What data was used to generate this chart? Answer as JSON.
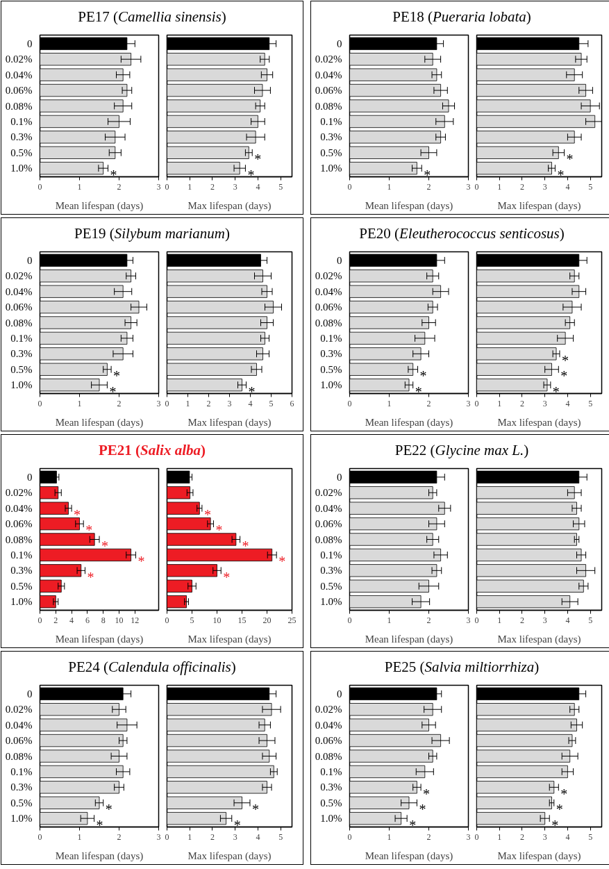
{
  "chart_data": [
    {
      "type": "bar",
      "orientation": "horizontal",
      "title": "PE17 (Camellia sinensis)",
      "xlabel": "Mean lifespan (days)",
      "categories": [
        "0",
        "0.02%",
        "0.04%",
        "0.06%",
        "0.08%",
        "0.1%",
        "0.3%",
        "0.5%",
        "1.0%"
      ],
      "values": [
        2.2,
        2.3,
        2.1,
        2.2,
        2.1,
        2.0,
        1.9,
        1.9,
        1.6
      ],
      "errors": [
        0.2,
        0.25,
        0.17,
        0.12,
        0.22,
        0.28,
        0.25,
        0.15,
        0.12
      ],
      "colors": [
        "#000000",
        "#d9d9d9",
        "#d9d9d9",
        "#d9d9d9",
        "#d9d9d9",
        "#d9d9d9",
        "#d9d9d9",
        "#d9d9d9",
        "#d9d9d9"
      ],
      "xlim": [
        0,
        3
      ],
      "xticks": [
        0,
        1,
        2,
        3
      ],
      "annotations": [
        {
          "text": "*",
          "x": 1.72,
          "y": "1.0%"
        }
      ]
    },
    {
      "type": "bar",
      "orientation": "horizontal",
      "xlabel": "Max lifespan (days)",
      "categories": [
        "0",
        "0.02%",
        "0.04%",
        "0.06%",
        "0.08%",
        "0.1%",
        "0.3%",
        "0.5%",
        "1.0%"
      ],
      "values": [
        4.5,
        4.3,
        4.4,
        4.2,
        4.1,
        4.0,
        3.9,
        3.6,
        3.2
      ],
      "errors": [
        0.3,
        0.2,
        0.25,
        0.35,
        0.2,
        0.3,
        0.4,
        0.15,
        0.25
      ],
      "colors": [
        "#000000",
        "#d9d9d9",
        "#d9d9d9",
        "#d9d9d9",
        "#d9d9d9",
        "#d9d9d9",
        "#d9d9d9",
        "#d9d9d9",
        "#d9d9d9"
      ],
      "xlim": [
        0,
        5.5
      ],
      "xticks": [
        0,
        1,
        2,
        3,
        4,
        5
      ],
      "tick_labels": "x",
      "annotations": [
        {
          "text": "*",
          "x": 3.75,
          "y": "0.5%"
        },
        {
          "text": "*",
          "x": 3.45,
          "y": "1.0%"
        }
      ]
    },
    {
      "type": "bar",
      "orientation": "horizontal",
      "title": "PE18 (Pueraria lobata)",
      "xlabel": "Mean lifespan (days)",
      "categories": [
        "0",
        "0.02%",
        "0.04%",
        "0.06%",
        "0.08%",
        "0.1%",
        "0.3%",
        "0.5%",
        "1.0%"
      ],
      "values": [
        2.2,
        2.1,
        2.2,
        2.3,
        2.5,
        2.4,
        2.3,
        2.0,
        1.7
      ],
      "errors": [
        0.17,
        0.2,
        0.12,
        0.17,
        0.15,
        0.22,
        0.12,
        0.2,
        0.12
      ],
      "colors": [
        "#000000",
        "#d9d9d9",
        "#d9d9d9",
        "#d9d9d9",
        "#d9d9d9",
        "#d9d9d9",
        "#d9d9d9",
        "#d9d9d9",
        "#d9d9d9"
      ],
      "xlim": [
        0,
        3
      ],
      "xticks": [
        0,
        1,
        2,
        3
      ],
      "annotations": [
        {
          "text": "*",
          "x": 1.82,
          "y": "1.0%"
        }
      ]
    },
    {
      "type": "bar",
      "orientation": "horizontal",
      "xlabel": "Max lifespan (days)",
      "categories": [
        "0",
        "0.02%",
        "0.04%",
        "0.06%",
        "0.08%",
        "0.1%",
        "0.3%",
        "0.5%",
        "1.0%"
      ],
      "values": [
        4.5,
        4.6,
        4.3,
        4.8,
        5.0,
        5.2,
        4.3,
        3.6,
        3.3
      ],
      "errors": [
        0.4,
        0.25,
        0.35,
        0.3,
        0.4,
        0.4,
        0.3,
        0.25,
        0.15
      ],
      "colors": [
        "#000000",
        "#d9d9d9",
        "#d9d9d9",
        "#d9d9d9",
        "#d9d9d9",
        "#d9d9d9",
        "#d9d9d9",
        "#d9d9d9",
        "#d9d9d9"
      ],
      "xlim": [
        0,
        5.5
      ],
      "xticks": [
        0,
        1,
        2,
        3,
        4,
        5
      ],
      "tick_labels": "x",
      "annotations": [
        {
          "text": "*",
          "x": 3.85,
          "y": "0.5%"
        },
        {
          "text": "*",
          "x": 3.45,
          "y": "1.0%"
        }
      ]
    },
    {
      "type": "bar",
      "orientation": "horizontal",
      "title": "PE19 (Silybum marianum)",
      "xlabel": "Mean lifespan (days)",
      "categories": [
        "0",
        "0.02%",
        "0.04%",
        "0.06%",
        "0.08%",
        "0.1%",
        "0.3%",
        "0.5%",
        "1.0%"
      ],
      "values": [
        2.2,
        2.3,
        2.1,
        2.5,
        2.3,
        2.2,
        2.1,
        1.7,
        1.5
      ],
      "errors": [
        0.15,
        0.12,
        0.22,
        0.2,
        0.15,
        0.15,
        0.25,
        0.1,
        0.2
      ],
      "colors": [
        "#000000",
        "#d9d9d9",
        "#d9d9d9",
        "#d9d9d9",
        "#d9d9d9",
        "#d9d9d9",
        "#d9d9d9",
        "#d9d9d9",
        "#d9d9d9"
      ],
      "xlim": [
        0,
        3
      ],
      "xticks": [
        0,
        1,
        2,
        3
      ],
      "annotations": [
        {
          "text": "*",
          "x": 1.8,
          "y": "0.5%"
        },
        {
          "text": "*",
          "x": 1.7,
          "y": "1.0%"
        }
      ]
    },
    {
      "type": "bar",
      "orientation": "horizontal",
      "xlabel": "Max lifespan (days)",
      "categories": [
        "0",
        "0.02%",
        "0.04%",
        "0.06%",
        "0.08%",
        "0.1%",
        "0.3%",
        "0.5%",
        "1.0%"
      ],
      "values": [
        4.5,
        4.6,
        4.8,
        5.1,
        4.8,
        4.7,
        4.6,
        4.3,
        3.6
      ],
      "errors": [
        0.3,
        0.4,
        0.25,
        0.4,
        0.3,
        0.2,
        0.3,
        0.25,
        0.2
      ],
      "colors": [
        "#000000",
        "#d9d9d9",
        "#d9d9d9",
        "#d9d9d9",
        "#d9d9d9",
        "#d9d9d9",
        "#d9d9d9",
        "#d9d9d9",
        "#d9d9d9"
      ],
      "xlim": [
        0,
        6
      ],
      "xticks": [
        0,
        1,
        2,
        3,
        4,
        5,
        6
      ],
      "tick_labels": "x",
      "annotations": [
        {
          "text": "*",
          "x": 3.8,
          "y": "1.0%"
        }
      ]
    },
    {
      "type": "bar",
      "orientation": "horizontal",
      "title": "PE20 (Eleutherococcus senticosus)",
      "xlabel": "Mean lifespan (days)",
      "categories": [
        "0",
        "0.02%",
        "0.04%",
        "0.06%",
        "0.08%",
        "0.1%",
        "0.3%",
        "0.5%",
        "1.0%"
      ],
      "values": [
        2.2,
        2.1,
        2.3,
        2.1,
        2.0,
        1.9,
        1.8,
        1.6,
        1.5
      ],
      "errors": [
        0.2,
        0.15,
        0.2,
        0.12,
        0.17,
        0.25,
        0.2,
        0.12,
        0.1
      ],
      "colors": [
        "#000000",
        "#d9d9d9",
        "#d9d9d9",
        "#d9d9d9",
        "#d9d9d9",
        "#d9d9d9",
        "#d9d9d9",
        "#d9d9d9",
        "#d9d9d9"
      ],
      "xlim": [
        0,
        3
      ],
      "xticks": [
        0,
        1,
        2,
        3
      ],
      "annotations": [
        {
          "text": "*",
          "x": 1.72,
          "y": "0.5%"
        },
        {
          "text": "*",
          "x": 1.6,
          "y": "1.0%"
        }
      ]
    },
    {
      "type": "bar",
      "orientation": "horizontal",
      "xlabel": "Max lifespan (days)",
      "categories": [
        "0",
        "0.02%",
        "0.04%",
        "0.06%",
        "0.08%",
        "0.1%",
        "0.3%",
        "0.5%",
        "1.0%"
      ],
      "values": [
        4.5,
        4.3,
        4.5,
        4.2,
        4.1,
        3.9,
        3.5,
        3.3,
        3.1
      ],
      "errors": [
        0.35,
        0.2,
        0.3,
        0.4,
        0.2,
        0.35,
        0.15,
        0.3,
        0.15
      ],
      "colors": [
        "#000000",
        "#d9d9d9",
        "#d9d9d9",
        "#d9d9d9",
        "#d9d9d9",
        "#d9d9d9",
        "#d9d9d9",
        "#d9d9d9",
        "#d9d9d9"
      ],
      "xlim": [
        0,
        5.5
      ],
      "xticks": [
        0,
        1,
        2,
        3,
        4,
        5
      ],
      "tick_labels": "x",
      "annotations": [
        {
          "text": "*",
          "x": 3.65,
          "y": "0.3%"
        },
        {
          "text": "*",
          "x": 3.6,
          "y": "0.5%"
        },
        {
          "text": "*",
          "x": 3.25,
          "y": "1.0%"
        }
      ]
    },
    {
      "type": "bar",
      "orientation": "horizontal",
      "title": "PE21 (Salix alba)",
      "xlabel": "Mean lifespan (days)",
      "categories": [
        "0",
        "0.02%",
        "0.04%",
        "0.06%",
        "0.08%",
        "0.1%",
        "0.3%",
        "0.5%",
        "1.0%"
      ],
      "values": [
        2.1,
        2.3,
        3.6,
        5.0,
        6.9,
        11.5,
        5.2,
        2.7,
        2.0
      ],
      "errors": [
        0.3,
        0.4,
        0.4,
        0.5,
        0.6,
        0.6,
        0.5,
        0.4,
        0.3
      ],
      "colors": [
        "#000000",
        "#ed1c24",
        "#ed1c24",
        "#ed1c24",
        "#ed1c24",
        "#ed1c24",
        "#ed1c24",
        "#ed1c24",
        "#ed1c24"
      ],
      "xlim": [
        0,
        15
      ],
      "xticks": [
        0,
        2,
        4,
        6,
        8,
        10,
        12
      ],
      "annotations": [
        {
          "text": "*",
          "x": 4.0,
          "y": "0.04%"
        },
        {
          "text": "*",
          "x": 5.5,
          "y": "0.06%"
        },
        {
          "text": "*",
          "x": 7.5,
          "y": "0.08%"
        },
        {
          "text": "*",
          "x": 12.1,
          "y": "0.1%"
        },
        {
          "text": "*",
          "x": 5.7,
          "y": "0.3%"
        }
      ]
    },
    {
      "type": "bar",
      "orientation": "horizontal",
      "xlabel": "Max lifespan (days)",
      "categories": [
        "0",
        "0.02%",
        "0.04%",
        "0.06%",
        "0.08%",
        "0.1%",
        "0.3%",
        "0.5%",
        "1.0%"
      ],
      "values": [
        4.5,
        4.6,
        6.5,
        8.7,
        13.8,
        21.0,
        10.0,
        5.0,
        3.9
      ],
      "errors": [
        0.5,
        0.6,
        0.5,
        0.6,
        0.8,
        0.9,
        0.8,
        0.8,
        0.4
      ],
      "colors": [
        "#000000",
        "#ed1c24",
        "#ed1c24",
        "#ed1c24",
        "#ed1c24",
        "#ed1c24",
        "#ed1c24",
        "#ed1c24",
        "#ed1c24"
      ],
      "xlim": [
        0,
        25
      ],
      "xticks": [
        0,
        5,
        10,
        15,
        20,
        25
      ],
      "tick_labels": "x",
      "annotations": [
        {
          "text": "*",
          "x": 7.0,
          "y": "0.04%"
        },
        {
          "text": "*",
          "x": 9.3,
          "y": "0.06%"
        },
        {
          "text": "*",
          "x": 14.6,
          "y": "0.08%"
        },
        {
          "text": "*",
          "x": 21.9,
          "y": "0.1%"
        },
        {
          "text": "*",
          "x": 10.8,
          "y": "0.3%"
        }
      ]
    },
    {
      "type": "bar",
      "orientation": "horizontal",
      "title": "PE22 (Glycine max L.)",
      "xlabel": "Mean lifespan (days)",
      "categories": [
        "0",
        "0.02%",
        "0.04%",
        "0.06%",
        "0.08%",
        "0.1%",
        "0.3%",
        "0.5%",
        "1.0%"
      ],
      "values": [
        2.2,
        2.1,
        2.4,
        2.2,
        2.1,
        2.3,
        2.2,
        2.0,
        1.8
      ],
      "errors": [
        0.2,
        0.1,
        0.15,
        0.2,
        0.15,
        0.17,
        0.12,
        0.25,
        0.22
      ],
      "colors": [
        "#000000",
        "#d9d9d9",
        "#d9d9d9",
        "#d9d9d9",
        "#d9d9d9",
        "#d9d9d9",
        "#d9d9d9",
        "#d9d9d9",
        "#d9d9d9"
      ],
      "xlim": [
        0,
        3
      ],
      "xticks": [
        0,
        1,
        2,
        3
      ]
    },
    {
      "type": "bar",
      "orientation": "horizontal",
      "xlabel": "Max lifespan (days)",
      "categories": [
        "0",
        "0.02%",
        "0.04%",
        "0.06%",
        "0.08%",
        "0.1%",
        "0.3%",
        "0.5%",
        "1.0%"
      ],
      "values": [
        4.5,
        4.3,
        4.4,
        4.5,
        4.4,
        4.6,
        4.8,
        4.7,
        4.1
      ],
      "errors": [
        0.35,
        0.3,
        0.2,
        0.25,
        0.1,
        0.2,
        0.4,
        0.2,
        0.35
      ],
      "colors": [
        "#000000",
        "#d9d9d9",
        "#d9d9d9",
        "#d9d9d9",
        "#d9d9d9",
        "#d9d9d9",
        "#d9d9d9",
        "#d9d9d9",
        "#d9d9d9"
      ],
      "xlim": [
        0,
        5.5
      ],
      "xticks": [
        0,
        1,
        2,
        3,
        4,
        5
      ],
      "tick_labels": "x"
    },
    {
      "type": "bar",
      "orientation": "horizontal",
      "title": "PE24 (Calendula officinalis)",
      "xlabel": "Mean lifespan (days)",
      "categories": [
        "0",
        "0.02%",
        "0.04%",
        "0.06%",
        "0.08%",
        "0.1%",
        "0.3%",
        "0.5%",
        "1.0%"
      ],
      "values": [
        2.1,
        2.0,
        2.2,
        2.1,
        2.0,
        2.1,
        2.0,
        1.5,
        1.2
      ],
      "errors": [
        0.2,
        0.17,
        0.25,
        0.1,
        0.2,
        0.17,
        0.12,
        0.1,
        0.17
      ],
      "colors": [
        "#000000",
        "#d9d9d9",
        "#d9d9d9",
        "#d9d9d9",
        "#d9d9d9",
        "#d9d9d9",
        "#d9d9d9",
        "#d9d9d9",
        "#d9d9d9"
      ],
      "xlim": [
        0,
        3
      ],
      "xticks": [
        0,
        1,
        2,
        3
      ],
      "annotations": [
        {
          "text": "*",
          "x": 1.6,
          "y": "0.5%"
        },
        {
          "text": "*",
          "x": 1.37,
          "y": "1.0%"
        }
      ]
    },
    {
      "type": "bar",
      "orientation": "horizontal",
      "xlabel": "Max lifespan (days)",
      "categories": [
        "0",
        "0.02%",
        "0.04%",
        "0.06%",
        "0.08%",
        "0.1%",
        "0.3%",
        "0.5%",
        "1.0%"
      ],
      "values": [
        4.5,
        4.6,
        4.3,
        4.4,
        4.5,
        4.7,
        4.4,
        3.3,
        2.6
      ],
      "errors": [
        0.3,
        0.4,
        0.25,
        0.35,
        0.3,
        0.15,
        0.2,
        0.35,
        0.25
      ],
      "colors": [
        "#000000",
        "#d9d9d9",
        "#d9d9d9",
        "#d9d9d9",
        "#d9d9d9",
        "#d9d9d9",
        "#d9d9d9",
        "#d9d9d9",
        "#d9d9d9"
      ],
      "xlim": [
        0,
        5.5
      ],
      "xticks": [
        0,
        1,
        2,
        3,
        4,
        5
      ],
      "tick_labels": "x",
      "annotations": [
        {
          "text": "*",
          "x": 3.65,
          "y": "0.5%"
        },
        {
          "text": "*",
          "x": 2.85,
          "y": "1.0%"
        }
      ]
    },
    {
      "type": "bar",
      "orientation": "horizontal",
      "title": "PE25 (Salvia miltiorrhiza)",
      "xlabel": "Mean lifespan (days)",
      "categories": [
        "0",
        "0.02%",
        "0.04%",
        "0.06%",
        "0.08%",
        "0.1%",
        "0.3%",
        "0.5%",
        "1.0%"
      ],
      "values": [
        2.2,
        2.1,
        2.0,
        2.3,
        2.1,
        1.9,
        1.7,
        1.5,
        1.3
      ],
      "errors": [
        0.12,
        0.22,
        0.17,
        0.22,
        0.1,
        0.22,
        0.1,
        0.2,
        0.15
      ],
      "colors": [
        "#000000",
        "#d9d9d9",
        "#d9d9d9",
        "#d9d9d9",
        "#d9d9d9",
        "#d9d9d9",
        "#d9d9d9",
        "#d9d9d9",
        "#d9d9d9"
      ],
      "xlim": [
        0,
        3
      ],
      "xticks": [
        0,
        1,
        2,
        3
      ],
      "annotations": [
        {
          "text": "*",
          "x": 1.8,
          "y": "0.3%"
        },
        {
          "text": "*",
          "x": 1.7,
          "y": "0.5%"
        },
        {
          "text": "*",
          "x": 1.45,
          "y": "1.0%"
        }
      ]
    },
    {
      "type": "bar",
      "orientation": "horizontal",
      "xlabel": "Max lifespan (days)",
      "categories": [
        "0",
        "0.02%",
        "0.04%",
        "0.06%",
        "0.08%",
        "0.1%",
        "0.3%",
        "0.5%",
        "1.0%"
      ],
      "values": [
        4.5,
        4.3,
        4.4,
        4.2,
        4.1,
        4.0,
        3.4,
        3.3,
        3.0
      ],
      "errors": [
        0.3,
        0.2,
        0.25,
        0.15,
        0.35,
        0.25,
        0.2,
        0.1,
        0.2
      ],
      "colors": [
        "#000000",
        "#d9d9d9",
        "#d9d9d9",
        "#d9d9d9",
        "#d9d9d9",
        "#d9d9d9",
        "#d9d9d9",
        "#d9d9d9",
        "#d9d9d9"
      ],
      "xlim": [
        0,
        5.5
      ],
      "xticks": [
        0,
        1,
        2,
        3,
        4,
        5
      ],
      "tick_labels": "x",
      "annotations": [
        {
          "text": "*",
          "x": 3.6,
          "y": "0.3%"
        },
        {
          "text": "*",
          "x": 3.4,
          "y": "0.5%"
        },
        {
          "text": "*",
          "x": 3.2,
          "y": "1.0%"
        }
      ]
    }
  ]
}
